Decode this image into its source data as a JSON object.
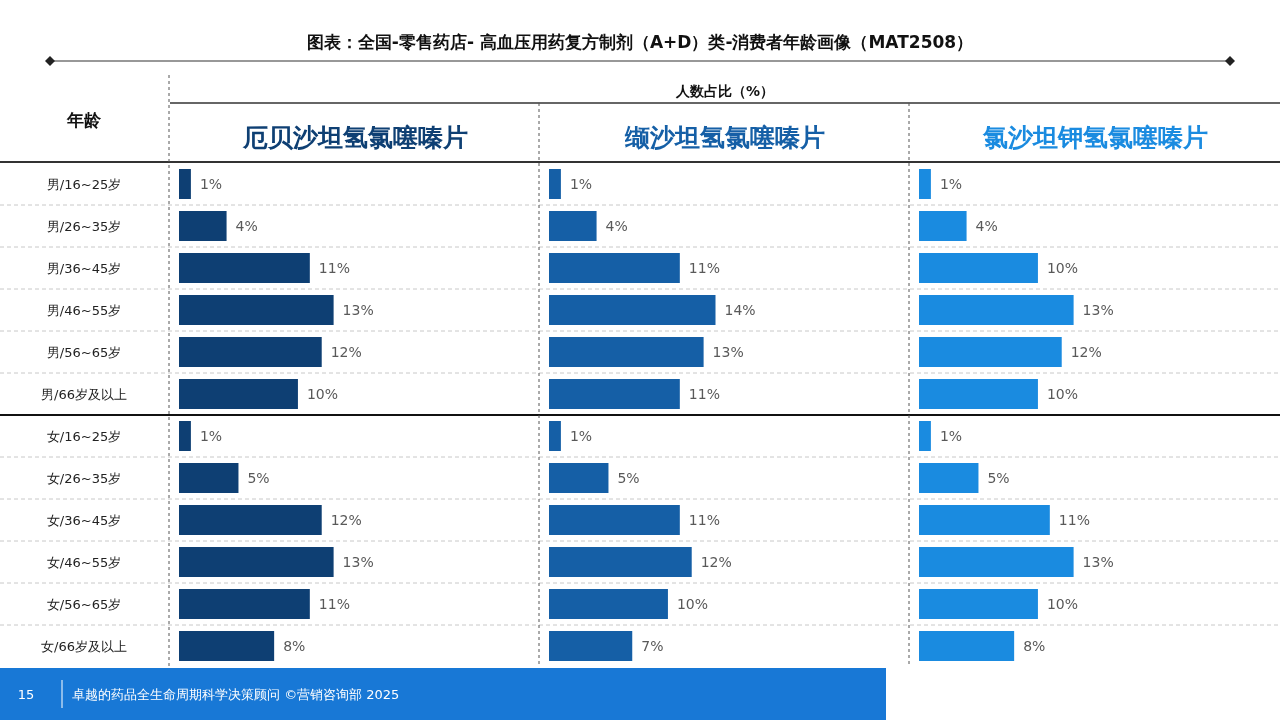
{
  "chart_data": [
    {
      "type": "bar",
      "orientation": "horizontal",
      "tick_labels": "y",
      "title": "图表：全国-零售药店- 高血压用药复方制剂（A+D）类-消费者年龄画像（MAT2508）",
      "subtitle": "厄贝沙坦氢氯噻嗪片",
      "ylabel": "年龄",
      "color": "#0e3f73",
      "categories": [
        "男/16~25岁",
        "男/26~35岁",
        "男/36~45岁",
        "男/46~55岁",
        "男/56~65岁",
        "男/66岁及以上",
        "女/16~25岁",
        "女/26~35岁",
        "女/36~45岁",
        "女/46~55岁",
        "女/56~65岁",
        "女/66岁及以上"
      ],
      "values": [
        1,
        4,
        11,
        13,
        12,
        10,
        1,
        5,
        12,
        13,
        11,
        8
      ],
      "value_labels": [
        "1%",
        "4%",
        "11%",
        "13%",
        "12%",
        "10%",
        "1%",
        "5%",
        "12%",
        "13%",
        "11%",
        "8%"
      ],
      "annotations": [
        "15",
        "卓越的药品全生命周期科学决策顾问 ©营销咨询部 2025"
      ]
    },
    {
      "type": "bar",
      "orientation": "horizontal",
      "tick_labels": false,
      "subtitle": "缬沙坦氢氯噻嗪片",
      "xlabel": "人数占比（%）",
      "color": "#155fa6",
      "values": [
        1,
        4,
        11,
        14,
        13,
        11,
        1,
        5,
        11,
        12,
        10,
        7
      ],
      "value_labels": [
        "1%",
        "4%",
        "11%",
        "14%",
        "13%",
        "11%",
        "1%",
        "5%",
        "11%",
        "12%",
        "10%",
        "7%"
      ]
    },
    {
      "type": "bar",
      "orientation": "horizontal",
      "tick_labels": false,
      "subtitle": "氯沙坦钾氢氯噻嗪片",
      "color": "#1a8be0",
      "values": [
        1,
        4,
        10,
        13,
        12,
        10,
        1,
        5,
        11,
        13,
        10,
        8
      ],
      "value_labels": [
        "1%",
        "4%",
        "10%",
        "13%",
        "12%",
        "10%",
        "1%",
        "5%",
        "11%",
        "13%",
        "10%",
        "8%"
      ]
    }
  ]
}
